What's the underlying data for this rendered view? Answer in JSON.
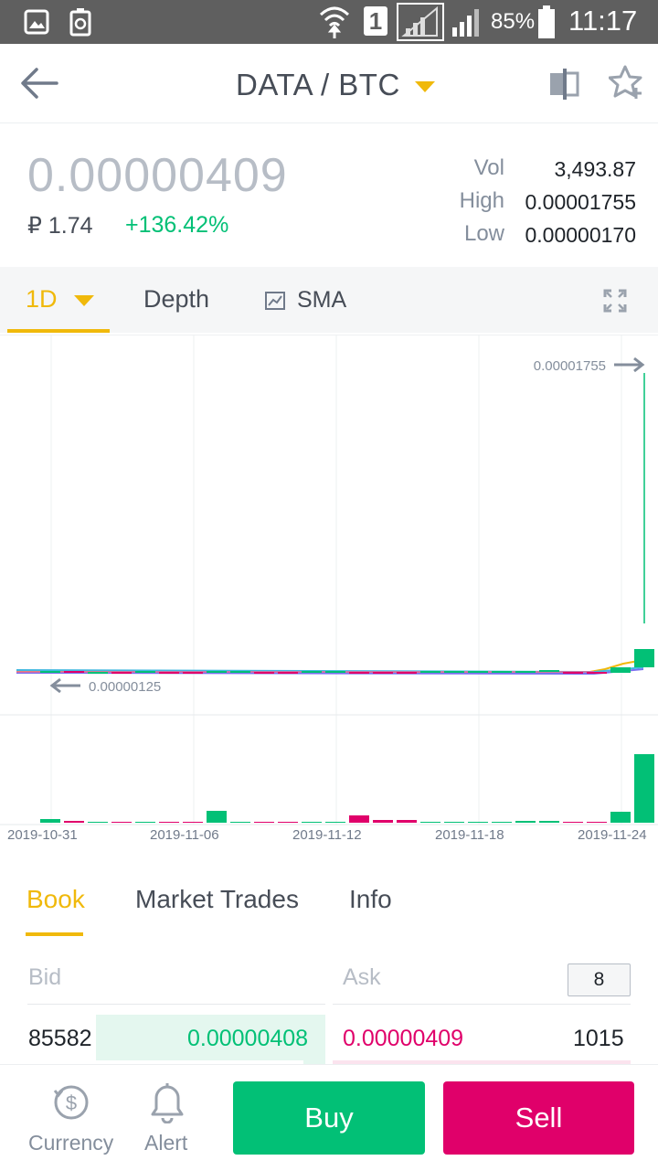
{
  "status_bar": {
    "battery": "85%",
    "time": "11:17",
    "sim_label": "1"
  },
  "header": {
    "pair": "DATA / BTC"
  },
  "ticker": {
    "price": "0.00000409",
    "fiat": "₽ 1.74",
    "change": "+136.42%",
    "vol_label": "Vol",
    "vol_value": "3,493.87",
    "high_label": "High",
    "high_value": "0.00001755",
    "low_label": "Low",
    "low_value": "0.00000170"
  },
  "chart_tabs": {
    "interval": "1D",
    "depth": "Depth",
    "indicator": "SMA"
  },
  "chart_data": {
    "type": "bar",
    "max_label": "0.00001755",
    "min_label": "0.00000125",
    "x_ticks": [
      "2019-10-31",
      "2019-11-06",
      "2019-11-12",
      "2019-11-18",
      "2019-11-24"
    ],
    "candles": [
      {
        "day": 0,
        "dir": "up"
      },
      {
        "day": 1,
        "dir": "down"
      },
      {
        "day": 2,
        "dir": "up"
      },
      {
        "day": 3,
        "dir": "down"
      },
      {
        "day": 4,
        "dir": "up"
      },
      {
        "day": 5,
        "dir": "down"
      },
      {
        "day": 6,
        "dir": "down"
      },
      {
        "day": 7,
        "dir": "up"
      },
      {
        "day": 8,
        "dir": "up"
      },
      {
        "day": 9,
        "dir": "down"
      },
      {
        "day": 10,
        "dir": "down"
      },
      {
        "day": 11,
        "dir": "up"
      },
      {
        "day": 12,
        "dir": "up"
      },
      {
        "day": 13,
        "dir": "down"
      },
      {
        "day": 14,
        "dir": "down"
      },
      {
        "day": 15,
        "dir": "down"
      },
      {
        "day": 16,
        "dir": "up"
      },
      {
        "day": 17,
        "dir": "up"
      },
      {
        "day": 18,
        "dir": "up"
      },
      {
        "day": 19,
        "dir": "up"
      },
      {
        "day": 20,
        "dir": "up"
      },
      {
        "day": 21,
        "dir": "up"
      },
      {
        "day": 22,
        "dir": "down"
      },
      {
        "day": 23,
        "dir": "down"
      },
      {
        "day": 24,
        "dir": "up"
      },
      {
        "day": 25,
        "dir": "up"
      },
      {
        "day": 26,
        "dir": "up"
      }
    ],
    "colors": {
      "up": "#02c076",
      "down": "#e0006a",
      "ma1": "#f0b90b",
      "ma2": "#7a6ff0",
      "ma3": "#40b8e0"
    }
  },
  "book_tabs": {
    "book": "Book",
    "trades": "Market Trades",
    "info": "Info"
  },
  "order_book": {
    "bid_label": "Bid",
    "ask_label": "Ask",
    "precision": "8",
    "bid_amount": "85582",
    "bid_price": "0.00000408",
    "ask_price": "0.00000409",
    "ask_amount": "1015"
  },
  "bottom_nav": {
    "currency": "Currency",
    "alert": "Alert",
    "buy": "Buy",
    "sell": "Sell"
  },
  "colors": {
    "accent": "#f0b90b",
    "green": "#02c076",
    "red": "#e0006a"
  }
}
